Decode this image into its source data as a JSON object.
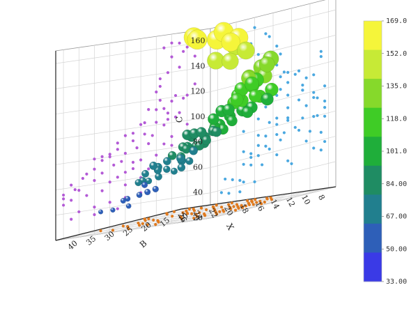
{
  "chart_data": {
    "type": "scatter",
    "variant": "3d-bubble-with-wall-projections",
    "axes": {
      "x": {
        "label": "X",
        "ticks": [
          8,
          10,
          12,
          14,
          16,
          18,
          20,
          22,
          24,
          26
        ],
        "range": [
          7,
          27
        ]
      },
      "y": {
        "label": "B",
        "ticks": [
          10,
          15,
          20,
          25,
          30,
          35,
          40
        ],
        "range": [
          8,
          42
        ]
      },
      "z": {
        "label": "C",
        "ticks": [
          20,
          40,
          60,
          80,
          100,
          120,
          140,
          160
        ],
        "range": [
          20,
          170
        ]
      }
    },
    "grid": true,
    "colorbar": {
      "position": "right",
      "levels": [
        "169.0",
        "152.0",
        "135.0",
        "118.0",
        "101.0",
        "84.00",
        "67.00",
        "50.00",
        "33.00"
      ],
      "band_colors": [
        "#f5f53a",
        "#c7ea36",
        "#86d92b",
        "#3fcc26",
        "#1fae3a",
        "#1f8c63",
        "#217f8e",
        "#2e5fb8",
        "#3a3ae6"
      ]
    },
    "projection_colors": {
      "xz_wall": "#b35ad6",
      "yz_wall": "#4aa8e0",
      "floor": "#e07a1e"
    },
    "bubbles": [
      {
        "x": 10,
        "y": 34,
        "z": 158
      },
      {
        "x": 11,
        "y": 30,
        "z": 162
      },
      {
        "x": 12,
        "y": 36,
        "z": 163
      },
      {
        "x": 9,
        "y": 31,
        "z": 150
      },
      {
        "x": 10.5,
        "y": 27,
        "z": 155
      },
      {
        "x": 12,
        "y": 26,
        "z": 152
      },
      {
        "x": 13,
        "y": 33,
        "z": 160
      },
      {
        "x": 11,
        "y": 24,
        "z": 143
      },
      {
        "x": 12.5,
        "y": 29,
        "z": 140
      },
      {
        "x": 13.5,
        "y": 23,
        "z": 136
      },
      {
        "x": 9,
        "y": 24,
        "z": 128
      },
      {
        "x": 13.5,
        "y": 12,
        "z": 130
      },
      {
        "x": 14,
        "y": 12,
        "z": 126
      },
      {
        "x": 10,
        "y": 21,
        "z": 120
      },
      {
        "x": 10.5,
        "y": 23,
        "z": 118
      },
      {
        "x": 11.5,
        "y": 22,
        "z": 121
      },
      {
        "x": 12,
        "y": 19,
        "z": 117
      },
      {
        "x": 13,
        "y": 21,
        "z": 112
      },
      {
        "x": 13.5,
        "y": 18,
        "z": 119
      },
      {
        "x": 12.5,
        "y": 23,
        "z": 108
      },
      {
        "x": 14,
        "y": 16,
        "z": 112
      },
      {
        "x": 11,
        "y": 17,
        "z": 107
      },
      {
        "x": 15,
        "y": 14,
        "z": 113
      },
      {
        "x": 11.5,
        "y": 24,
        "z": 104
      },
      {
        "x": 12.5,
        "y": 17,
        "z": 103
      },
      {
        "x": 14,
        "y": 21,
        "z": 102
      },
      {
        "x": 15.5,
        "y": 17,
        "z": 103
      },
      {
        "x": 16,
        "y": 11,
        "z": 102
      },
      {
        "x": 13,
        "y": 14,
        "z": 99
      },
      {
        "x": 10,
        "y": 27,
        "z": 97
      },
      {
        "x": 15.5,
        "y": 13,
        "z": 94
      },
      {
        "x": 14.5,
        "y": 21,
        "z": 92
      },
      {
        "x": 17,
        "y": 18,
        "z": 96
      },
      {
        "x": 18,
        "y": 14,
        "z": 95
      },
      {
        "x": 17,
        "y": 11,
        "z": 90
      },
      {
        "x": 19,
        "y": 16,
        "z": 90
      },
      {
        "x": 12,
        "y": 29,
        "z": 89
      },
      {
        "x": 19,
        "y": 11,
        "z": 85
      },
      {
        "x": 12,
        "y": 33,
        "z": 82
      },
      {
        "x": 13,
        "y": 26,
        "z": 84
      },
      {
        "x": 15,
        "y": 24,
        "z": 86
      },
      {
        "x": 16.5,
        "y": 21,
        "z": 84
      },
      {
        "x": 18,
        "y": 24,
        "z": 81
      },
      {
        "x": 20,
        "y": 14,
        "z": 80
      },
      {
        "x": 20,
        "y": 21,
        "z": 82
      },
      {
        "x": 21,
        "y": 17,
        "z": 81
      },
      {
        "x": 22,
        "y": 13,
        "z": 80
      },
      {
        "x": 21,
        "y": 11,
        "z": 78
      },
      {
        "x": 14,
        "y": 29,
        "z": 76
      },
      {
        "x": 16,
        "y": 27,
        "z": 74
      },
      {
        "x": 17,
        "y": 24,
        "z": 73
      },
      {
        "x": 18.5,
        "y": 19,
        "z": 75
      },
      {
        "x": 19.5,
        "y": 22,
        "z": 73
      },
      {
        "x": 22,
        "y": 18,
        "z": 72
      },
      {
        "x": 23,
        "y": 15,
        "z": 69
      },
      {
        "x": 23.5,
        "y": 12,
        "z": 66
      },
      {
        "x": 17,
        "y": 29,
        "z": 68
      },
      {
        "x": 18,
        "y": 27,
        "z": 66
      },
      {
        "x": 21,
        "y": 23,
        "z": 68
      },
      {
        "x": 25,
        "y": 16,
        "z": 62
      },
      {
        "x": 24.5,
        "y": 11,
        "z": 58
      },
      {
        "x": 26,
        "y": 14,
        "z": 55
      },
      {
        "x": 19,
        "y": 31,
        "z": 63
      },
      {
        "x": 20,
        "y": 29,
        "z": 60
      },
      {
        "x": 22,
        "y": 26,
        "z": 63
      },
      {
        "x": 24,
        "y": 24,
        "z": 57
      },
      {
        "x": 26,
        "y": 12,
        "z": 52
      },
      {
        "x": 15,
        "y": 33,
        "z": 66
      },
      {
        "x": 16,
        "y": 31,
        "z": 60
      },
      {
        "x": 18,
        "y": 33,
        "z": 56
      },
      {
        "x": 21,
        "y": 31,
        "z": 54
      },
      {
        "x": 23,
        "y": 28,
        "z": 52
      },
      {
        "x": 25,
        "y": 21,
        "z": 50
      },
      {
        "x": 26,
        "y": 20,
        "z": 47
      },
      {
        "x": 16,
        "y": 38,
        "z": 48
      },
      {
        "x": 18,
        "y": 36,
        "z": 46
      },
      {
        "x": 20,
        "y": 34,
        "z": 44
      },
      {
        "x": 22,
        "y": 33,
        "z": 42
      },
      {
        "x": 24,
        "y": 30,
        "z": 40
      },
      {
        "x": 19,
        "y": 39,
        "z": 38
      },
      {
        "x": 22,
        "y": 37,
        "z": 36
      },
      {
        "x": 25,
        "y": 34,
        "z": 35
      }
    ]
  }
}
